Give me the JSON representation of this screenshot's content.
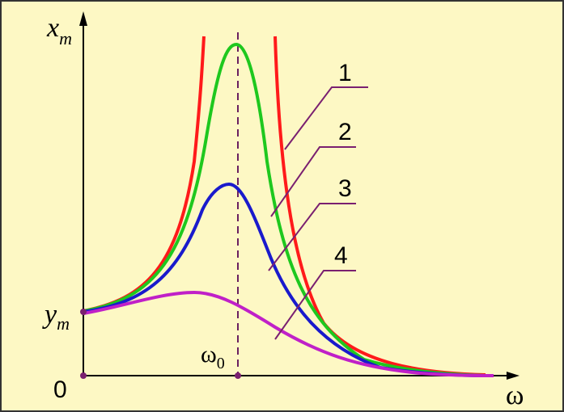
{
  "y_axis_label": {
    "symbol": "x",
    "subscript": "m"
  },
  "y_intercept_label": {
    "symbol": "y",
    "subscript": "m"
  },
  "x_axis_label": "ω",
  "resonance_label": {
    "symbol": "ω",
    "subscript": "0"
  },
  "origin_label": "0",
  "curve_labels": [
    "1",
    "2",
    "3",
    "4"
  ]
}
